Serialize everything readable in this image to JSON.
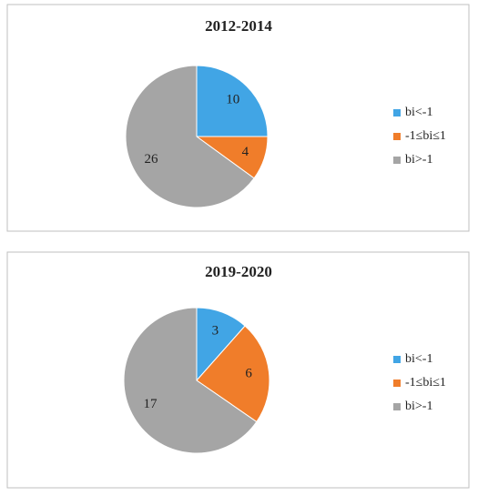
{
  "chart_data": [
    {
      "type": "pie",
      "title": "2012-2014",
      "categories": [
        "bi<-1",
        "-1≤bi≤1",
        "bi>-1"
      ],
      "values": [
        10,
        4,
        26
      ],
      "colors": [
        "#41a5e5",
        "#f07d2a",
        "#a5a5a5"
      ],
      "legend": "right"
    },
    {
      "type": "pie",
      "title": "2019-2020",
      "categories": [
        "bi<-1",
        "-1≤bi≤1",
        "bi>-1"
      ],
      "values": [
        3,
        6,
        17
      ],
      "colors": [
        "#41a5e5",
        "#f07d2a",
        "#a5a5a5"
      ],
      "legend": "right"
    }
  ]
}
